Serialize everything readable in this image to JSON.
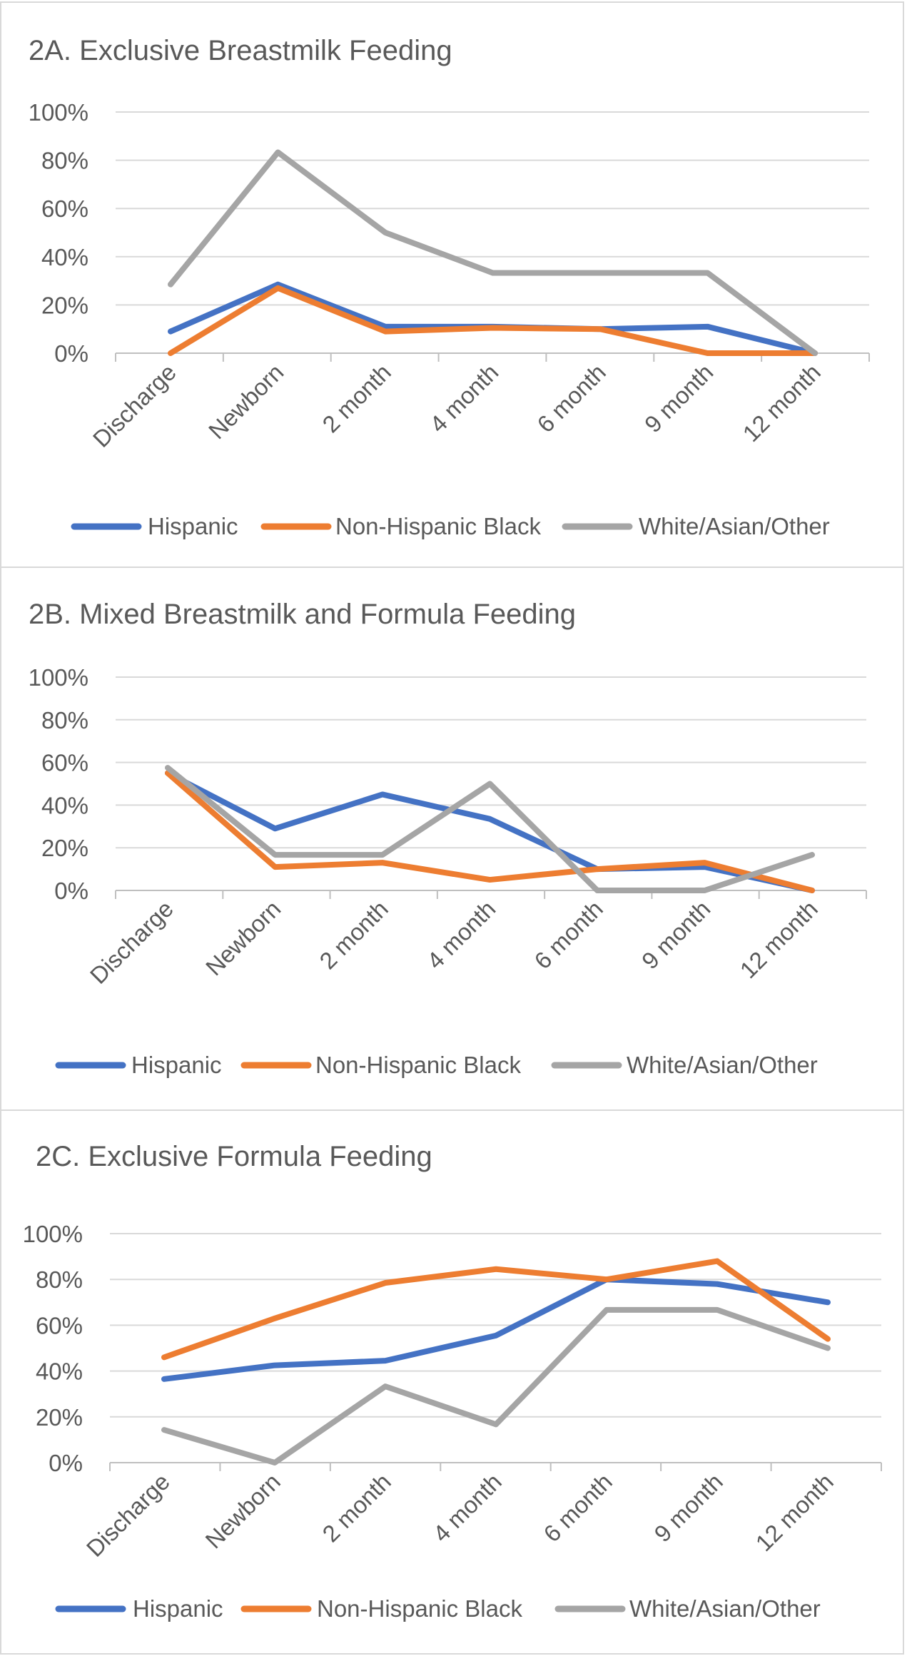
{
  "charts": [
    {
      "type": "line",
      "title": "2A. Exclusive Breastmilk Feeding",
      "categories": [
        "Discharge",
        "Newborn",
        "2 month",
        "4 month",
        "6 month",
        "9 month",
        "12 month"
      ],
      "y_tick_labels": [
        "0%",
        "20%",
        "40%",
        "60%",
        "80%",
        "100%"
      ],
      "ylim": [
        0,
        100
      ],
      "grid": true,
      "legend_position": "bottom",
      "series": [
        {
          "name": "Hispanic",
          "color": "#4472C4",
          "values": [
            9,
            28.5,
            11,
            11,
            10,
            11,
            0
          ]
        },
        {
          "name": "Non-Hispanic Black",
          "color": "#ED7D31",
          "values": [
            0,
            27,
            9,
            10.5,
            10,
            0,
            0
          ]
        },
        {
          "name": "White/Asian/Other",
          "color": "#A5A5A5",
          "values": [
            28.5,
            83.3,
            50,
            33.3,
            33.3,
            33.3,
            0
          ]
        }
      ]
    },
    {
      "type": "line",
      "title": "2B. Mixed Breastmilk and Formula Feeding",
      "categories": [
        "Discharge",
        "Newborn",
        "2 month",
        "4 month",
        "6 month",
        "9 month",
        "12 month"
      ],
      "y_tick_labels": [
        "0%",
        "20%",
        "40%",
        "60%",
        "80%",
        "100%"
      ],
      "ylim": [
        0,
        100
      ],
      "grid": true,
      "legend_position": "bottom",
      "series": [
        {
          "name": "Hispanic",
          "color": "#4472C4",
          "values": [
            55,
            29,
            45,
            33.5,
            10,
            11,
            0
          ]
        },
        {
          "name": "Non-Hispanic Black",
          "color": "#ED7D31",
          "values": [
            55,
            11,
            13,
            5,
            10,
            13,
            0
          ]
        },
        {
          "name": "White/Asian/Other",
          "color": "#A5A5A5",
          "values": [
            57.5,
            16.7,
            16.7,
            50,
            0,
            0,
            16.7
          ]
        }
      ]
    },
    {
      "type": "line",
      "title": "2C. Exclusive Formula Feeding",
      "categories": [
        "Discharge",
        "Newborn",
        "2 month",
        "4 month",
        "6 month",
        "9 month",
        "12 month"
      ],
      "y_tick_labels": [
        "0%",
        "20%",
        "40%",
        "60%",
        "80%",
        "100%"
      ],
      "ylim": [
        0,
        100
      ],
      "grid": true,
      "legend_position": "bottom",
      "series": [
        {
          "name": "Hispanic",
          "color": "#4472C4",
          "values": [
            36.5,
            42.5,
            44.5,
            55.5,
            80,
            78,
            70
          ]
        },
        {
          "name": "Non-Hispanic Black",
          "color": "#ED7D31",
          "values": [
            46,
            63,
            78.5,
            84.5,
            80,
            88,
            54
          ]
        },
        {
          "name": "White/Asian/Other",
          "color": "#A5A5A5",
          "values": [
            14.3,
            0,
            33.3,
            16.7,
            66.7,
            66.7,
            50
          ]
        }
      ]
    }
  ]
}
